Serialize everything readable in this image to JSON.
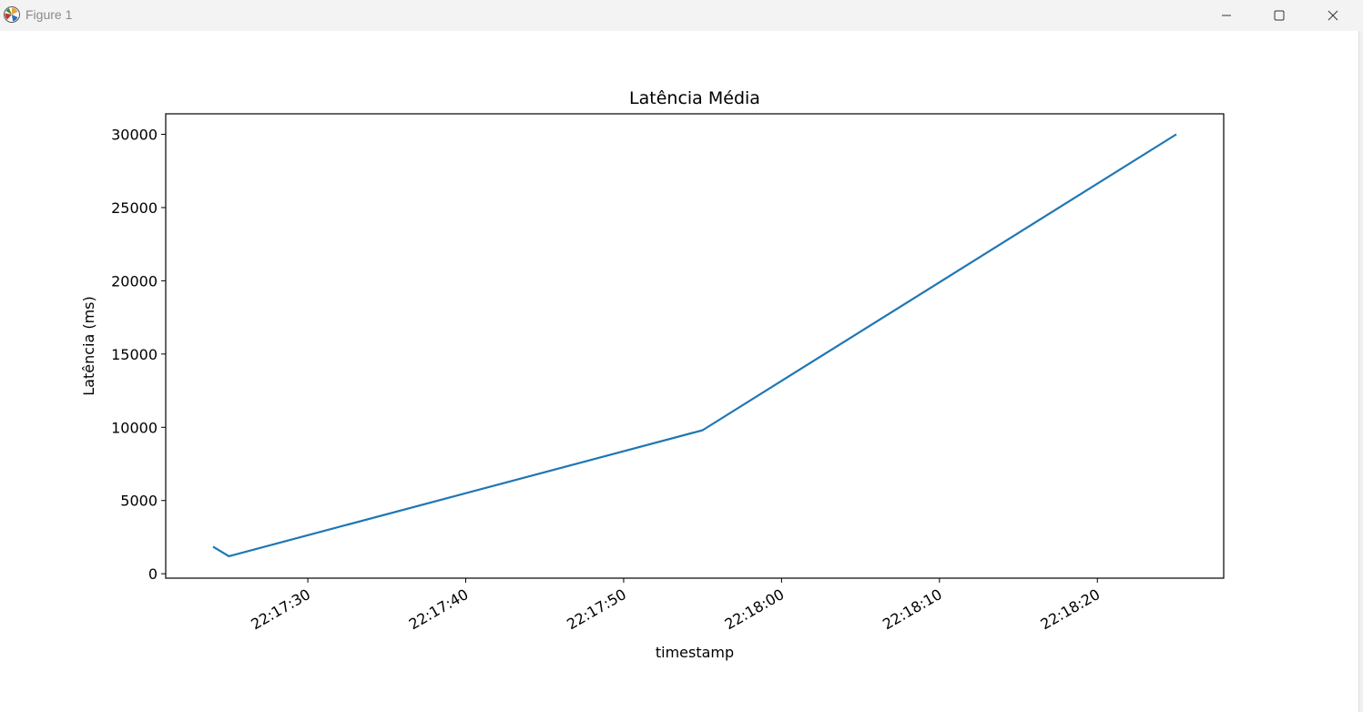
{
  "window": {
    "title": "Figure 1",
    "icon": "matplotlib-icon",
    "controls": [
      "minimize-icon",
      "maximize-icon",
      "close-icon"
    ]
  },
  "colors": {
    "line": "#1f77b4",
    "titlebar": "#f3f3f3",
    "axes": "#000000"
  },
  "chart_data": {
    "type": "line",
    "title": "Latência Média",
    "xlabel": "timestamp",
    "ylabel": "Latência (ms)",
    "x_tick_labels": [
      "22:17:30",
      "22:17:40",
      "22:17:50",
      "22:18:00",
      "22:18:10",
      "22:18:20"
    ],
    "y_tick_labels": [
      "0",
      "5000",
      "10000",
      "15000",
      "20000",
      "25000",
      "30000"
    ],
    "xlim": [
      "22:17:21",
      "22:18:28"
    ],
    "ylim": [
      -300,
      31400
    ],
    "grid": false,
    "series": [
      {
        "x": [
          "22:17:24",
          "22:17:25",
          "22:17:55",
          "22:18:25"
        ],
        "y": [
          1850,
          1200,
          9800,
          30000
        ]
      }
    ]
  }
}
